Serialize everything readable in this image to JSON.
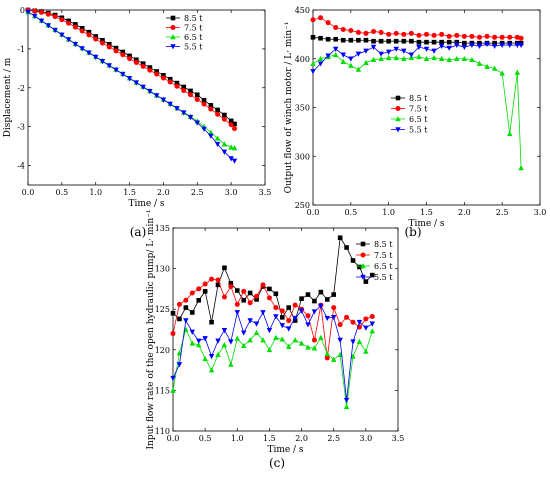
{
  "colors": {
    "8.5 t": "#000000",
    "7.5 t": "#ff0000",
    "6.5 t": "#00dd00",
    "5.5 t": "#0000ff"
  },
  "markers": {
    "8.5 t": "square",
    "7.5 t": "circle",
    "6.5 t": "triangle-up",
    "5.5 t": "triangle-down"
  },
  "chart_data": [
    {
      "panel": "(a)",
      "type": "line",
      "xlabel": "Time / s",
      "ylabel": "Displacement / m",
      "xlim": [
        0,
        3.5
      ],
      "ylim": [
        -4.5,
        0
      ],
      "xticks": [
        "0.0",
        "0.5",
        "1.0",
        "1.5",
        "2.0",
        "2.5",
        "3.0",
        "3.5"
      ],
      "yticks": [
        "0",
        "-1",
        "-2",
        "-3",
        "-4"
      ],
      "legend_position": "top-right",
      "series": [
        {
          "name": "8.5 t",
          "x": [
            0,
            0.1,
            0.2,
            0.3,
            0.4,
            0.5,
            0.6,
            0.7,
            0.8,
            0.9,
            1.0,
            1.1,
            1.2,
            1.3,
            1.4,
            1.5,
            1.6,
            1.7,
            1.8,
            1.9,
            2.0,
            2.1,
            2.2,
            2.3,
            2.4,
            2.5,
            2.6,
            2.7,
            2.8,
            2.9,
            3.0,
            3.05
          ],
          "y": [
            0,
            -0.02,
            -0.04,
            -0.08,
            -0.13,
            -0.2,
            -0.28,
            -0.37,
            -0.47,
            -0.57,
            -0.68,
            -0.78,
            -0.88,
            -0.98,
            -1.08,
            -1.18,
            -1.28,
            -1.38,
            -1.48,
            -1.58,
            -1.68,
            -1.78,
            -1.88,
            -1.98,
            -2.08,
            -2.18,
            -2.32,
            -2.45,
            -2.57,
            -2.7,
            -2.85,
            -2.93
          ]
        },
        {
          "name": "7.5 t",
          "x": [
            0,
            0.1,
            0.2,
            0.3,
            0.4,
            0.5,
            0.6,
            0.7,
            0.8,
            0.9,
            1.0,
            1.1,
            1.2,
            1.3,
            1.4,
            1.5,
            1.6,
            1.7,
            1.8,
            1.9,
            2.0,
            2.1,
            2.2,
            2.3,
            2.4,
            2.5,
            2.6,
            2.7,
            2.8,
            2.9,
            3.0,
            3.05
          ],
          "y": [
            0,
            -0.03,
            -0.06,
            -0.11,
            -0.17,
            -0.25,
            -0.34,
            -0.44,
            -0.54,
            -0.64,
            -0.75,
            -0.85,
            -0.95,
            -1.05,
            -1.15,
            -1.25,
            -1.35,
            -1.45,
            -1.55,
            -1.65,
            -1.75,
            -1.85,
            -1.96,
            -2.07,
            -2.18,
            -2.3,
            -2.42,
            -2.55,
            -2.68,
            -2.81,
            -2.95,
            -3.05
          ]
        },
        {
          "name": "6.5 t",
          "x": [
            0,
            0.1,
            0.2,
            0.3,
            0.4,
            0.5,
            0.6,
            0.7,
            0.8,
            0.9,
            1.0,
            1.1,
            1.2,
            1.3,
            1.4,
            1.5,
            1.6,
            1.7,
            1.8,
            1.9,
            2.0,
            2.1,
            2.2,
            2.3,
            2.4,
            2.5,
            2.6,
            2.7,
            2.8,
            2.9,
            3.0,
            3.05
          ],
          "y": [
            -0.05,
            -0.15,
            -0.27,
            -0.39,
            -0.51,
            -0.63,
            -0.75,
            -0.87,
            -0.98,
            -1.09,
            -1.2,
            -1.31,
            -1.42,
            -1.53,
            -1.64,
            -1.75,
            -1.86,
            -1.97,
            -2.08,
            -2.19,
            -2.3,
            -2.41,
            -2.52,
            -2.63,
            -2.74,
            -2.86,
            -3.0,
            -3.15,
            -3.3,
            -3.45,
            -3.53,
            -3.55
          ]
        },
        {
          "name": "5.5 t",
          "x": [
            0,
            0.1,
            0.2,
            0.3,
            0.4,
            0.5,
            0.6,
            0.7,
            0.8,
            0.9,
            1.0,
            1.1,
            1.2,
            1.3,
            1.4,
            1.5,
            1.6,
            1.7,
            1.8,
            1.9,
            2.0,
            2.1,
            2.2,
            2.3,
            2.4,
            2.5,
            2.6,
            2.7,
            2.8,
            2.9,
            3.0,
            3.05
          ],
          "y": [
            -0.05,
            -0.16,
            -0.28,
            -0.4,
            -0.52,
            -0.64,
            -0.76,
            -0.88,
            -0.99,
            -1.1,
            -1.21,
            -1.32,
            -1.43,
            -1.54,
            -1.65,
            -1.76,
            -1.87,
            -1.98,
            -2.09,
            -2.2,
            -2.31,
            -2.42,
            -2.53,
            -2.64,
            -2.76,
            -2.9,
            -3.06,
            -3.24,
            -3.45,
            -3.65,
            -3.82,
            -3.88
          ]
        }
      ]
    },
    {
      "panel": "(b)",
      "type": "line",
      "xlabel": "Time / s",
      "ylabel": "Output flow of winch motor / L· min⁻¹",
      "xlim": [
        0,
        3.0
      ],
      "ylim": [
        250,
        450
      ],
      "xticks": [
        "0.0",
        "0.5",
        "1.0",
        "1.5",
        "2.0",
        "2.5",
        "3.0"
      ],
      "yticks": [
        "250",
        "300",
        "350",
        "400",
        "450"
      ],
      "legend_position": "center-right",
      "series": [
        {
          "name": "8.5 t",
          "x": [
            0,
            0.1,
            0.2,
            0.3,
            0.4,
            0.5,
            0.6,
            0.7,
            0.8,
            0.9,
            1.0,
            1.1,
            1.2,
            1.3,
            1.4,
            1.5,
            1.6,
            1.7,
            1.8,
            1.9,
            2.0,
            2.1,
            2.2,
            2.3,
            2.4,
            2.5,
            2.6,
            2.7,
            2.75
          ],
          "y": [
            422,
            421,
            420,
            420,
            419,
            419,
            419,
            419,
            418,
            418,
            418,
            418,
            418,
            418,
            417,
            417,
            417,
            417,
            417,
            417,
            416,
            416,
            416,
            416,
            416,
            416,
            416,
            416,
            416
          ]
        },
        {
          "name": "7.5 t",
          "x": [
            0,
            0.1,
            0.2,
            0.3,
            0.4,
            0.5,
            0.6,
            0.7,
            0.8,
            0.9,
            1.0,
            1.1,
            1.2,
            1.3,
            1.4,
            1.5,
            1.6,
            1.7,
            1.8,
            1.9,
            2.0,
            2.1,
            2.2,
            2.3,
            2.4,
            2.5,
            2.6,
            2.7,
            2.75
          ],
          "y": [
            440,
            442,
            437,
            432,
            430,
            429,
            427,
            426,
            428,
            427,
            425,
            426,
            425,
            426,
            424,
            425,
            424,
            425,
            423,
            424,
            423,
            423,
            422,
            423,
            422,
            422,
            422,
            422,
            421
          ]
        },
        {
          "name": "6.5 t",
          "x": [
            0,
            0.1,
            0.2,
            0.3,
            0.4,
            0.5,
            0.6,
            0.7,
            0.8,
            0.9,
            1.0,
            1.1,
            1.2,
            1.3,
            1.4,
            1.5,
            1.6,
            1.7,
            1.8,
            1.9,
            2.0,
            2.1,
            2.2,
            2.3,
            2.4,
            2.5,
            2.6,
            2.7,
            2.75
          ],
          "y": [
            395,
            400,
            402,
            404,
            397,
            393,
            389,
            396,
            399,
            400,
            401,
            401,
            400,
            401,
            402,
            400,
            401,
            400,
            399,
            400,
            400,
            399,
            395,
            392,
            390,
            385,
            323,
            386,
            288
          ]
        },
        {
          "name": "5.5 t",
          "x": [
            0,
            0.1,
            0.2,
            0.3,
            0.4,
            0.5,
            0.6,
            0.7,
            0.8,
            0.9,
            1.0,
            1.1,
            1.2,
            1.3,
            1.4,
            1.5,
            1.6,
            1.7,
            1.8,
            1.9,
            2.0,
            2.1,
            2.2,
            2.3,
            2.4,
            2.5,
            2.6,
            2.7,
            2.75
          ],
          "y": [
            387,
            395,
            403,
            410,
            404,
            400,
            405,
            408,
            412,
            405,
            407,
            410,
            408,
            404,
            412,
            410,
            408,
            413,
            411,
            414,
            412,
            414,
            413,
            415,
            413,
            414,
            414,
            414,
            414
          ]
        }
      ]
    },
    {
      "panel": "(c)",
      "type": "line",
      "xlabel": "Time / s",
      "ylabel": "Input flow rate of the open hydraulic pump/ L· min⁻¹",
      "xlim": [
        0,
        3.5
      ],
      "ylim": [
        110,
        135
      ],
      "xticks": [
        "0.0",
        "0.5",
        "1.0",
        "1.5",
        "2.0",
        "2.5",
        "3.0",
        "3.5"
      ],
      "yticks": [
        "110",
        "115",
        "120",
        "125",
        "130",
        "135"
      ],
      "legend_position": "top-right",
      "series": [
        {
          "name": "8.5 t",
          "x": [
            0,
            0.1,
            0.2,
            0.3,
            0.4,
            0.5,
            0.6,
            0.7,
            0.8,
            0.9,
            1.0,
            1.1,
            1.2,
            1.3,
            1.4,
            1.5,
            1.6,
            1.7,
            1.8,
            1.9,
            2.0,
            2.1,
            2.2,
            2.3,
            2.4,
            2.5,
            2.6,
            2.7,
            2.8,
            2.9,
            3.0,
            3.1
          ],
          "y": [
            124.5,
            123.8,
            125.2,
            124.6,
            126.1,
            127.2,
            123.4,
            128.0,
            130.1,
            128.2,
            127.3,
            126.1,
            127.0,
            126.2,
            127.8,
            127.5,
            126.9,
            124.0,
            125.2,
            123.6,
            126.3,
            126.8,
            126.0,
            127.1,
            126.2,
            126.8,
            133.8,
            132.6,
            131.0,
            130.2,
            128.4,
            129.2
          ]
        },
        {
          "name": "7.5 t",
          "x": [
            0,
            0.1,
            0.2,
            0.3,
            0.4,
            0.5,
            0.6,
            0.7,
            0.8,
            0.9,
            1.0,
            1.1,
            1.2,
            1.3,
            1.4,
            1.5,
            1.6,
            1.7,
            1.8,
            1.9,
            2.0,
            2.1,
            2.2,
            2.3,
            2.4,
            2.5,
            2.6,
            2.7,
            2.8,
            2.9,
            3.0,
            3.1
          ],
          "y": [
            122.0,
            125.6,
            126.1,
            127.0,
            127.5,
            128.1,
            128.7,
            128.6,
            126.5,
            127.8,
            125.6,
            127.2,
            125.8,
            126.6,
            128.0,
            126.4,
            125.2,
            124.8,
            123.6,
            125.5,
            125.0,
            124.2,
            121.2,
            125.5,
            119.0,
            125.2,
            123.1,
            124.0,
            123.4,
            122.8,
            123.8,
            124.1
          ]
        },
        {
          "name": "6.5 t",
          "x": [
            0,
            0.1,
            0.2,
            0.3,
            0.4,
            0.5,
            0.6,
            0.7,
            0.8,
            0.9,
            1.0,
            1.1,
            1.2,
            1.3,
            1.4,
            1.5,
            1.6,
            1.7,
            1.8,
            1.9,
            2.0,
            2.1,
            2.2,
            2.3,
            2.4,
            2.5,
            2.6,
            2.7,
            2.8,
            2.9,
            3.0,
            3.1
          ],
          "y": [
            115.0,
            119.6,
            122.5,
            120.8,
            120.6,
            118.9,
            117.5,
            119.4,
            120.6,
            118.2,
            121.4,
            120.5,
            121.2,
            122.1,
            121.2,
            120.0,
            121.5,
            121.3,
            120.4,
            121.2,
            120.8,
            120.3,
            120.2,
            121.5,
            119.5,
            118.8,
            119.4,
            113.0,
            119.2,
            121.0,
            119.8,
            122.3
          ]
        },
        {
          "name": "5.5 t",
          "x": [
            0,
            0.1,
            0.2,
            0.3,
            0.4,
            0.5,
            0.6,
            0.7,
            0.8,
            0.9,
            1.0,
            1.1,
            1.2,
            1.3,
            1.4,
            1.5,
            1.6,
            1.7,
            1.8,
            1.9,
            2.0,
            2.1,
            2.2,
            2.3,
            2.4,
            2.5,
            2.6,
            2.7,
            2.8,
            2.9,
            3.0,
            3.1
          ],
          "y": [
            116.5,
            118.2,
            123.6,
            122.2,
            121.1,
            121.4,
            119.2,
            121.1,
            122.4,
            121.0,
            124.6,
            122.1,
            123.6,
            123.2,
            124.6,
            122.4,
            124.1,
            123.0,
            122.6,
            123.9,
            124.8,
            123.1,
            124.7,
            125.4,
            123.9,
            124.0,
            121.2,
            113.8,
            121.0,
            123.4,
            122.7,
            123.2
          ]
        }
      ]
    }
  ]
}
